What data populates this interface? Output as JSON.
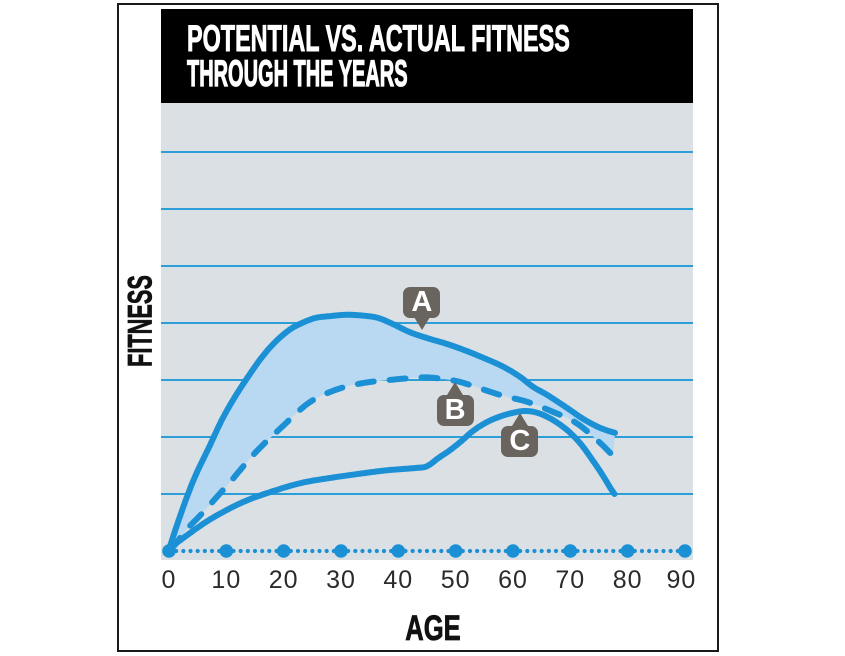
{
  "title": {
    "line1": "POTENTIAL VS. ACTUAL FITNESS",
    "line2": "THROUGH THE YEARS"
  },
  "y_axis_label": "FITNESS",
  "x_axis_label": "AGE",
  "colors": {
    "curve_blue": "#1b90d5",
    "fill_blue": "#b9d9f2",
    "plot_bg": "#dbe0e4",
    "gridline": "#2d9fd8",
    "label_box": "#6a645f",
    "label_text": "#ffffff",
    "title_bg": "#000000",
    "title_text": "#ffffff",
    "axis_text": "#2b2b2b"
  },
  "chart_data": {
    "type": "line",
    "title": "POTENTIAL VS. ACTUAL FITNESS THROUGH THE YEARS",
    "xlabel": "AGE",
    "ylabel": "FITNESS",
    "xlim": [
      0,
      93
    ],
    "ylim": [
      0,
      100
    ],
    "x_ticks": [
      0,
      10,
      20,
      30,
      40,
      50,
      60,
      70,
      80,
      90
    ],
    "grid": "horizontal",
    "gridline_fitness_levels": [
      12.5,
      25,
      37.5,
      50,
      62.5,
      75,
      87.5
    ],
    "legend": "none",
    "y_axis_numeric_labels": false,
    "fill_between": [
      "A",
      "B"
    ],
    "series": [
      {
        "name": "A",
        "style": "solid",
        "points": [
          [
            0,
            0.4
          ],
          [
            2.3,
            9.0
          ],
          [
            4.5,
            16.2
          ],
          [
            7,
            22.8
          ],
          [
            9.2,
            28.7
          ],
          [
            11.5,
            33.8
          ],
          [
            14,
            38.6
          ],
          [
            16.2,
            42.5
          ],
          [
            18.5,
            45.8
          ],
          [
            21,
            48.5
          ],
          [
            23.2,
            50.0
          ],
          [
            25.5,
            51.1
          ],
          [
            28,
            51.5
          ],
          [
            31,
            51.8
          ],
          [
            34,
            51.6
          ],
          [
            36.5,
            51.1
          ],
          [
            39,
            49.8
          ],
          [
            42,
            48.0
          ],
          [
            45,
            46.7
          ],
          [
            48,
            45.6
          ],
          [
            51,
            44.3
          ],
          [
            54,
            42.8
          ],
          [
            58,
            40.6
          ],
          [
            61,
            38.4
          ],
          [
            63.5,
            36.0
          ],
          [
            66,
            34.2
          ],
          [
            69.4,
            31.4
          ],
          [
            72.2,
            29.0
          ],
          [
            75.2,
            27.0
          ],
          [
            77.8,
            25.9
          ]
        ]
      },
      {
        "name": "B",
        "style": "dashed",
        "points": [
          [
            0,
            0.4
          ],
          [
            1,
            1.3
          ],
          [
            3,
            4.6
          ],
          [
            5.8,
            8.3
          ],
          [
            10.5,
            14.9
          ],
          [
            15,
            21.5
          ],
          [
            19.7,
            27.2
          ],
          [
            24.4,
            32.5
          ],
          [
            29,
            35.3
          ],
          [
            33.7,
            36.8
          ],
          [
            38.4,
            37.5
          ],
          [
            43,
            38.0
          ],
          [
            46,
            38.0
          ],
          [
            50,
            37.3
          ],
          [
            53,
            36.2
          ],
          [
            57.8,
            34.2
          ],
          [
            62.5,
            32.7
          ],
          [
            67,
            30.5
          ],
          [
            71,
            28.1
          ],
          [
            74.7,
            24.3
          ],
          [
            77.5,
            20.8
          ]
        ]
      },
      {
        "name": "C",
        "style": "solid",
        "points": [
          [
            0,
            0.4
          ],
          [
            2,
            2.4
          ],
          [
            7,
            6.8
          ],
          [
            12.5,
            10.5
          ],
          [
            17.6,
            12.9
          ],
          [
            23,
            14.9
          ],
          [
            28,
            16.0
          ],
          [
            33,
            16.9
          ],
          [
            38,
            17.7
          ],
          [
            43,
            18.2
          ],
          [
            45,
            18.6
          ],
          [
            47,
            20.4
          ],
          [
            49,
            22.1
          ],
          [
            51,
            24.1
          ],
          [
            53,
            26.3
          ],
          [
            55.5,
            28.3
          ],
          [
            58,
            29.6
          ],
          [
            60,
            30.3
          ],
          [
            62,
            30.7
          ],
          [
            64,
            30.4
          ],
          [
            66,
            29.4
          ],
          [
            68,
            27.9
          ],
          [
            70,
            25.9
          ],
          [
            72,
            23.2
          ],
          [
            74,
            19.7
          ],
          [
            75.5,
            16.9
          ],
          [
            77,
            13.8
          ],
          [
            77.7,
            12.5
          ]
        ]
      }
    ],
    "annotations": [
      {
        "text": "A",
        "age": 44.1,
        "fitness": 48.2,
        "pointer": "down"
      },
      {
        "text": "B",
        "age": 49.9,
        "fitness": 37.3,
        "pointer": "up"
      },
      {
        "text": "C",
        "age": 61.2,
        "fitness": 30.5,
        "pointer": "up"
      }
    ]
  }
}
